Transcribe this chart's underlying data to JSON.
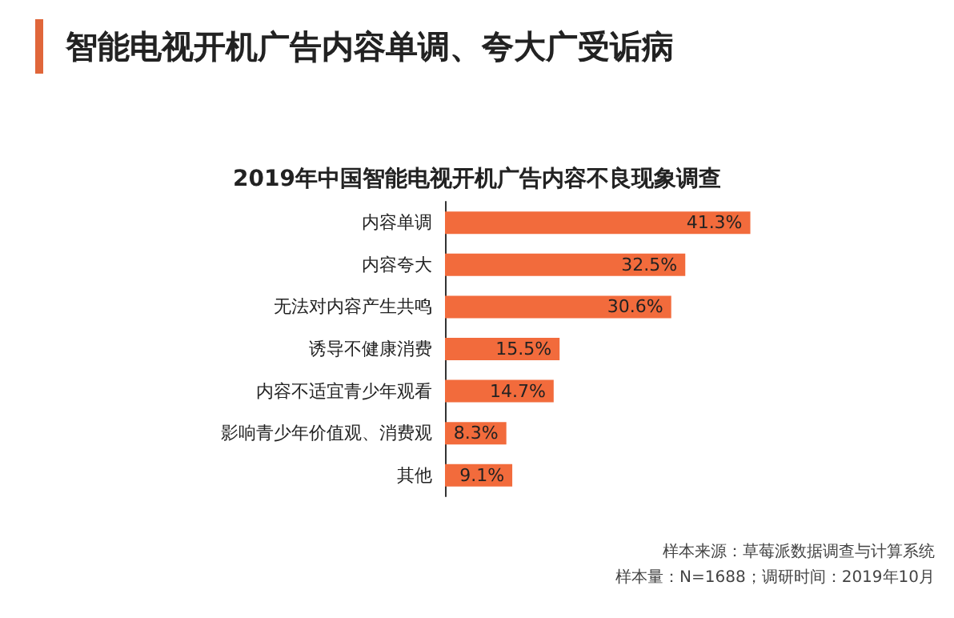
{
  "chart_data": {
    "type": "bar",
    "orientation": "horizontal",
    "title": "智能电视开机广告内容单调、夸大广受诟病",
    "subtitle": "2019年中国智能电视开机广告内容不良现象调查",
    "categories": [
      "内容单调",
      "内容夸大",
      "无法对内容产生共鸣",
      "诱导不健康消费",
      "内容不适宜青少年观看",
      "影响青少年价值观、消费观",
      "其他"
    ],
    "values": [
      41.3,
      32.5,
      30.6,
      15.5,
      14.7,
      8.3,
      9.1
    ],
    "value_labels": [
      "41.3%",
      "32.5%",
      "30.6%",
      "15.5%",
      "14.7%",
      "8.3%",
      "9.1%"
    ],
    "color": "#f26b3c",
    "annotations": [
      "样本来源：草莓派数据调查与计算系统",
      "样本量：N=1688；调研时间：2019年10月"
    ]
  }
}
